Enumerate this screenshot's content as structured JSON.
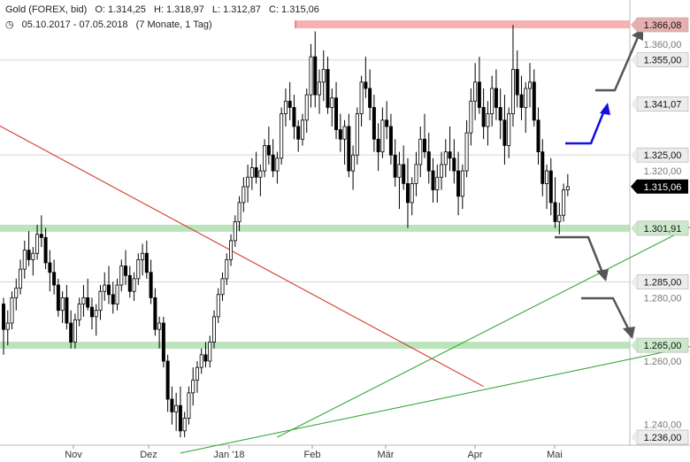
{
  "header": {
    "symbol": "Gold (FOREX, bid)",
    "open": "O: 1.314,25",
    "high": "H: 1.318,97",
    "low": "L: 1.312,87",
    "close": "C: 1.315,06",
    "range": "05.10.2017 - 07.05.2018",
    "period": "(7 Monate, 1 Tag)"
  },
  "colors": {
    "up": "#ffffff",
    "down": "#000000",
    "wick": "#000000",
    "support_band": "#9fd89f",
    "resistance_band": "#f4a3a3",
    "trend_green": "#3aa83a",
    "trend_red": "#d43a2a",
    "arrow_gray": "#555555",
    "arrow_blue": "#1010e0",
    "grid": "#d8d8d8",
    "label_box": "#ececec",
    "last_box": "#000000"
  },
  "chart_data": {
    "type": "candlestick",
    "title": "Gold (FOREX, bid)",
    "x_ticks": [
      "Nov",
      "Dez",
      "Jan '18",
      "Feb",
      "Mär",
      "Apr",
      "Mai"
    ],
    "ylim": [
      1228,
      1372
    ],
    "y_tick_labels": [
      "1.360,00",
      "1.320,00",
      "1.280,00",
      "1.260,00",
      "1.240,00"
    ],
    "level_labels": [
      "1.366,08",
      "1.355,00",
      "1.341,07",
      "1.325,00",
      "1.301,91",
      "1.285,00",
      "1.265,00",
      "1.236,00"
    ],
    "last_price_label": "1.315,06",
    "grid_levels": [
      1355,
      1325,
      1285
    ],
    "support_bands": [
      1301.91,
      1265.0
    ],
    "resistance_band": 1366.08,
    "last_price": 1315.06,
    "candles": [
      [
        1278,
        1280,
        1262,
        1270
      ],
      [
        1270,
        1276,
        1265,
        1272
      ],
      [
        1272,
        1282,
        1270,
        1280
      ],
      [
        1280,
        1286,
        1276,
        1283
      ],
      [
        1283,
        1292,
        1281,
        1289
      ],
      [
        1289,
        1298,
        1286,
        1295
      ],
      [
        1295,
        1301,
        1290,
        1292
      ],
      [
        1292,
        1296,
        1287,
        1294
      ],
      [
        1294,
        1303,
        1292,
        1300
      ],
      [
        1300,
        1306,
        1296,
        1299
      ],
      [
        1299,
        1302,
        1289,
        1291
      ],
      [
        1291,
        1295,
        1282,
        1288
      ],
      [
        1288,
        1292,
        1281,
        1284
      ],
      [
        1284,
        1286,
        1274,
        1276
      ],
      [
        1276,
        1282,
        1272,
        1280
      ],
      [
        1280,
        1284,
        1270,
        1272
      ],
      [
        1272,
        1276,
        1264,
        1266
      ],
      [
        1266,
        1275,
        1264,
        1273
      ],
      [
        1273,
        1280,
        1271,
        1278
      ],
      [
        1278,
        1284,
        1274,
        1280
      ],
      [
        1280,
        1286,
        1276,
        1277
      ],
      [
        1277,
        1280,
        1270,
        1274
      ],
      [
        1274,
        1278,
        1268,
        1276
      ],
      [
        1276,
        1284,
        1273,
        1282
      ],
      [
        1282,
        1288,
        1279,
        1284
      ],
      [
        1284,
        1290,
        1278,
        1281
      ],
      [
        1281,
        1285,
        1275,
        1278
      ],
      [
        1278,
        1286,
        1276,
        1284
      ],
      [
        1284,
        1292,
        1282,
        1290
      ],
      [
        1290,
        1295,
        1284,
        1287
      ],
      [
        1287,
        1290,
        1280,
        1282
      ],
      [
        1282,
        1288,
        1279,
        1286
      ],
      [
        1286,
        1294,
        1284,
        1292
      ],
      [
        1292,
        1297,
        1287,
        1294
      ],
      [
        1294,
        1298,
        1286,
        1288
      ],
      [
        1288,
        1292,
        1278,
        1280
      ],
      [
        1280,
        1283,
        1268,
        1270
      ],
      [
        1270,
        1274,
        1264,
        1272
      ],
      [
        1272,
        1274,
        1258,
        1260
      ],
      [
        1260,
        1262,
        1244,
        1248
      ],
      [
        1248,
        1252,
        1240,
        1244
      ],
      [
        1244,
        1250,
        1238,
        1246
      ],
      [
        1246,
        1252,
        1236,
        1238
      ],
      [
        1238,
        1244,
        1236,
        1242
      ],
      [
        1242,
        1252,
        1240,
        1250
      ],
      [
        1250,
        1258,
        1246,
        1254
      ],
      [
        1254,
        1260,
        1250,
        1258
      ],
      [
        1258,
        1264,
        1256,
        1262
      ],
      [
        1262,
        1266,
        1258,
        1260
      ],
      [
        1260,
        1268,
        1258,
        1266
      ],
      [
        1266,
        1276,
        1264,
        1274
      ],
      [
        1274,
        1283,
        1272,
        1281
      ],
      [
        1281,
        1288,
        1279,
        1286
      ],
      [
        1286,
        1294,
        1284,
        1292
      ],
      [
        1292,
        1300,
        1290,
        1298
      ],
      [
        1298,
        1306,
        1296,
        1304
      ],
      [
        1304,
        1312,
        1301,
        1310
      ],
      [
        1310,
        1318,
        1307,
        1315
      ],
      [
        1315,
        1322,
        1310,
        1318
      ],
      [
        1318,
        1324,
        1314,
        1321
      ],
      [
        1321,
        1326,
        1316,
        1318
      ],
      [
        1318,
        1322,
        1312,
        1320
      ],
      [
        1320,
        1330,
        1318,
        1328
      ],
      [
        1328,
        1334,
        1322,
        1325
      ],
      [
        1325,
        1330,
        1318,
        1320
      ],
      [
        1320,
        1326,
        1316,
        1324
      ],
      [
        1324,
        1340,
        1322,
        1338
      ],
      [
        1338,
        1346,
        1334,
        1342
      ],
      [
        1342,
        1348,
        1336,
        1340
      ],
      [
        1340,
        1344,
        1330,
        1334
      ],
      [
        1334,
        1336,
        1326,
        1330
      ],
      [
        1330,
        1338,
        1328,
        1336
      ],
      [
        1336,
        1346,
        1332,
        1344
      ],
      [
        1344,
        1360,
        1340,
        1356
      ],
      [
        1356,
        1364,
        1340,
        1344
      ],
      [
        1344,
        1352,
        1338,
        1348
      ],
      [
        1348,
        1358,
        1342,
        1352
      ],
      [
        1352,
        1356,
        1338,
        1340
      ],
      [
        1340,
        1346,
        1334,
        1343
      ],
      [
        1343,
        1348,
        1330,
        1333
      ],
      [
        1333,
        1338,
        1326,
        1330
      ],
      [
        1330,
        1336,
        1322,
        1334
      ],
      [
        1334,
        1338,
        1318,
        1320
      ],
      [
        1320,
        1328,
        1314,
        1325
      ],
      [
        1325,
        1340,
        1322,
        1338
      ],
      [
        1338,
        1350,
        1334,
        1348
      ],
      [
        1348,
        1356,
        1343,
        1346
      ],
      [
        1346,
        1352,
        1336,
        1340
      ],
      [
        1340,
        1344,
        1326,
        1330
      ],
      [
        1330,
        1335,
        1320,
        1326
      ],
      [
        1326,
        1340,
        1324,
        1336
      ],
      [
        1336,
        1342,
        1330,
        1334
      ],
      [
        1334,
        1338,
        1322,
        1325
      ],
      [
        1325,
        1330,
        1315,
        1318
      ],
      [
        1318,
        1326,
        1308,
        1322
      ],
      [
        1322,
        1328,
        1314,
        1316
      ],
      [
        1316,
        1324,
        1302,
        1310
      ],
      [
        1310,
        1318,
        1306,
        1316
      ],
      [
        1316,
        1326,
        1312,
        1322
      ],
      [
        1322,
        1334,
        1318,
        1330
      ],
      [
        1330,
        1338,
        1324,
        1326
      ],
      [
        1326,
        1332,
        1316,
        1320
      ],
      [
        1320,
        1324,
        1310,
        1314
      ],
      [
        1314,
        1322,
        1310,
        1318
      ],
      [
        1318,
        1326,
        1314,
        1322
      ],
      [
        1322,
        1330,
        1318,
        1326
      ],
      [
        1326,
        1334,
        1320,
        1324
      ],
      [
        1324,
        1330,
        1316,
        1320
      ],
      [
        1320,
        1326,
        1306,
        1312
      ],
      [
        1312,
        1322,
        1308,
        1320
      ],
      [
        1320,
        1336,
        1318,
        1332
      ],
      [
        1332,
        1346,
        1328,
        1342
      ],
      [
        1342,
        1354,
        1336,
        1348
      ],
      [
        1348,
        1356,
        1338,
        1340
      ],
      [
        1340,
        1346,
        1330,
        1334
      ],
      [
        1334,
        1342,
        1328,
        1338
      ],
      [
        1338,
        1350,
        1334,
        1346
      ],
      [
        1346,
        1352,
        1336,
        1340
      ],
      [
        1340,
        1346,
        1330,
        1336
      ],
      [
        1336,
        1344,
        1322,
        1328
      ],
      [
        1328,
        1340,
        1324,
        1338
      ],
      [
        1338,
        1366,
        1334,
        1352
      ],
      [
        1352,
        1358,
        1340,
        1344
      ],
      [
        1344,
        1350,
        1336,
        1340
      ],
      [
        1340,
        1348,
        1332,
        1346
      ],
      [
        1346,
        1354,
        1340,
        1348
      ],
      [
        1348,
        1352,
        1334,
        1336
      ],
      [
        1336,
        1340,
        1322,
        1326
      ],
      [
        1326,
        1330,
        1312,
        1316
      ],
      [
        1316,
        1322,
        1308,
        1320
      ],
      [
        1320,
        1324,
        1306,
        1310
      ],
      [
        1310,
        1318,
        1302,
        1304
      ],
      [
        1304,
        1310,
        1300,
        1306
      ],
      [
        1306,
        1316,
        1304,
        1314
      ],
      [
        1314,
        1319,
        1312,
        1315
      ]
    ],
    "trend_lines": [
      {
        "name": "red-downtrend",
        "from": [
          -2,
          1335
        ],
        "to": [
          114,
          1252
        ]
      },
      {
        "name": "green-steep-uptrend",
        "from": [
          65,
          1236
        ],
        "to": [
          244,
          1357
        ]
      },
      {
        "name": "green-shallow-uptrend",
        "from": [
          42,
          1231
        ],
        "to": [
          251,
          1289
        ]
      }
    ]
  }
}
